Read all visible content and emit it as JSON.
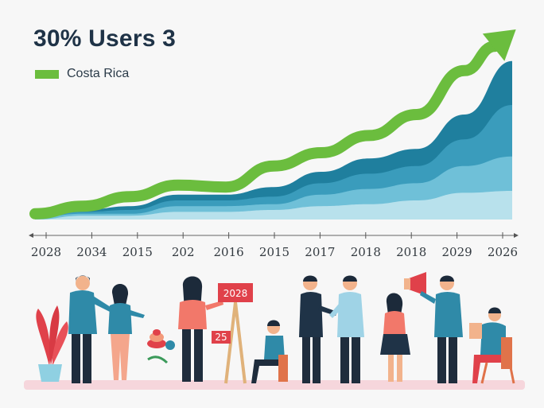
{
  "chart_data": {
    "type": "area",
    "title": "30% Users 3",
    "legend": [
      {
        "name": "Costa Rica",
        "color": "#6bbd3e"
      }
    ],
    "legend_position": "top-left",
    "categories": [
      "2028",
      "2034",
      "2015",
      "202",
      "2016",
      "2015",
      "2017",
      "2018",
      "2018",
      "2029",
      "2026"
    ],
    "ylim": [
      0,
      100
    ],
    "grid": false,
    "series": [
      {
        "name": "Costa Rica",
        "kind": "line-arrow",
        "color": "#6bbd3e",
        "values": [
          3,
          7,
          12,
          18,
          17,
          28,
          35,
          44,
          55,
          78,
          98
        ]
      },
      {
        "kind": "area",
        "color": "#1f7f9e",
        "values": [
          2,
          5,
          7,
          13,
          13,
          17,
          25,
          32,
          37,
          55,
          83
        ]
      },
      {
        "kind": "area",
        "color": "#3a9cbc",
        "values": [
          1,
          4,
          5,
          10,
          10,
          12,
          19,
          24,
          28,
          42,
          60
        ]
      },
      {
        "kind": "area",
        "color": "#6fc0d8",
        "values": [
          1,
          3,
          3,
          7,
          7,
          8,
          13,
          16,
          19,
          28,
          33
        ]
      },
      {
        "kind": "area",
        "color": "#b8e1ec",
        "values": [
          0,
          2,
          2,
          4,
          4,
          5,
          7,
          8,
          10,
          14,
          15
        ]
      }
    ]
  },
  "illustration": {
    "signs": [
      "2028",
      "25"
    ]
  }
}
